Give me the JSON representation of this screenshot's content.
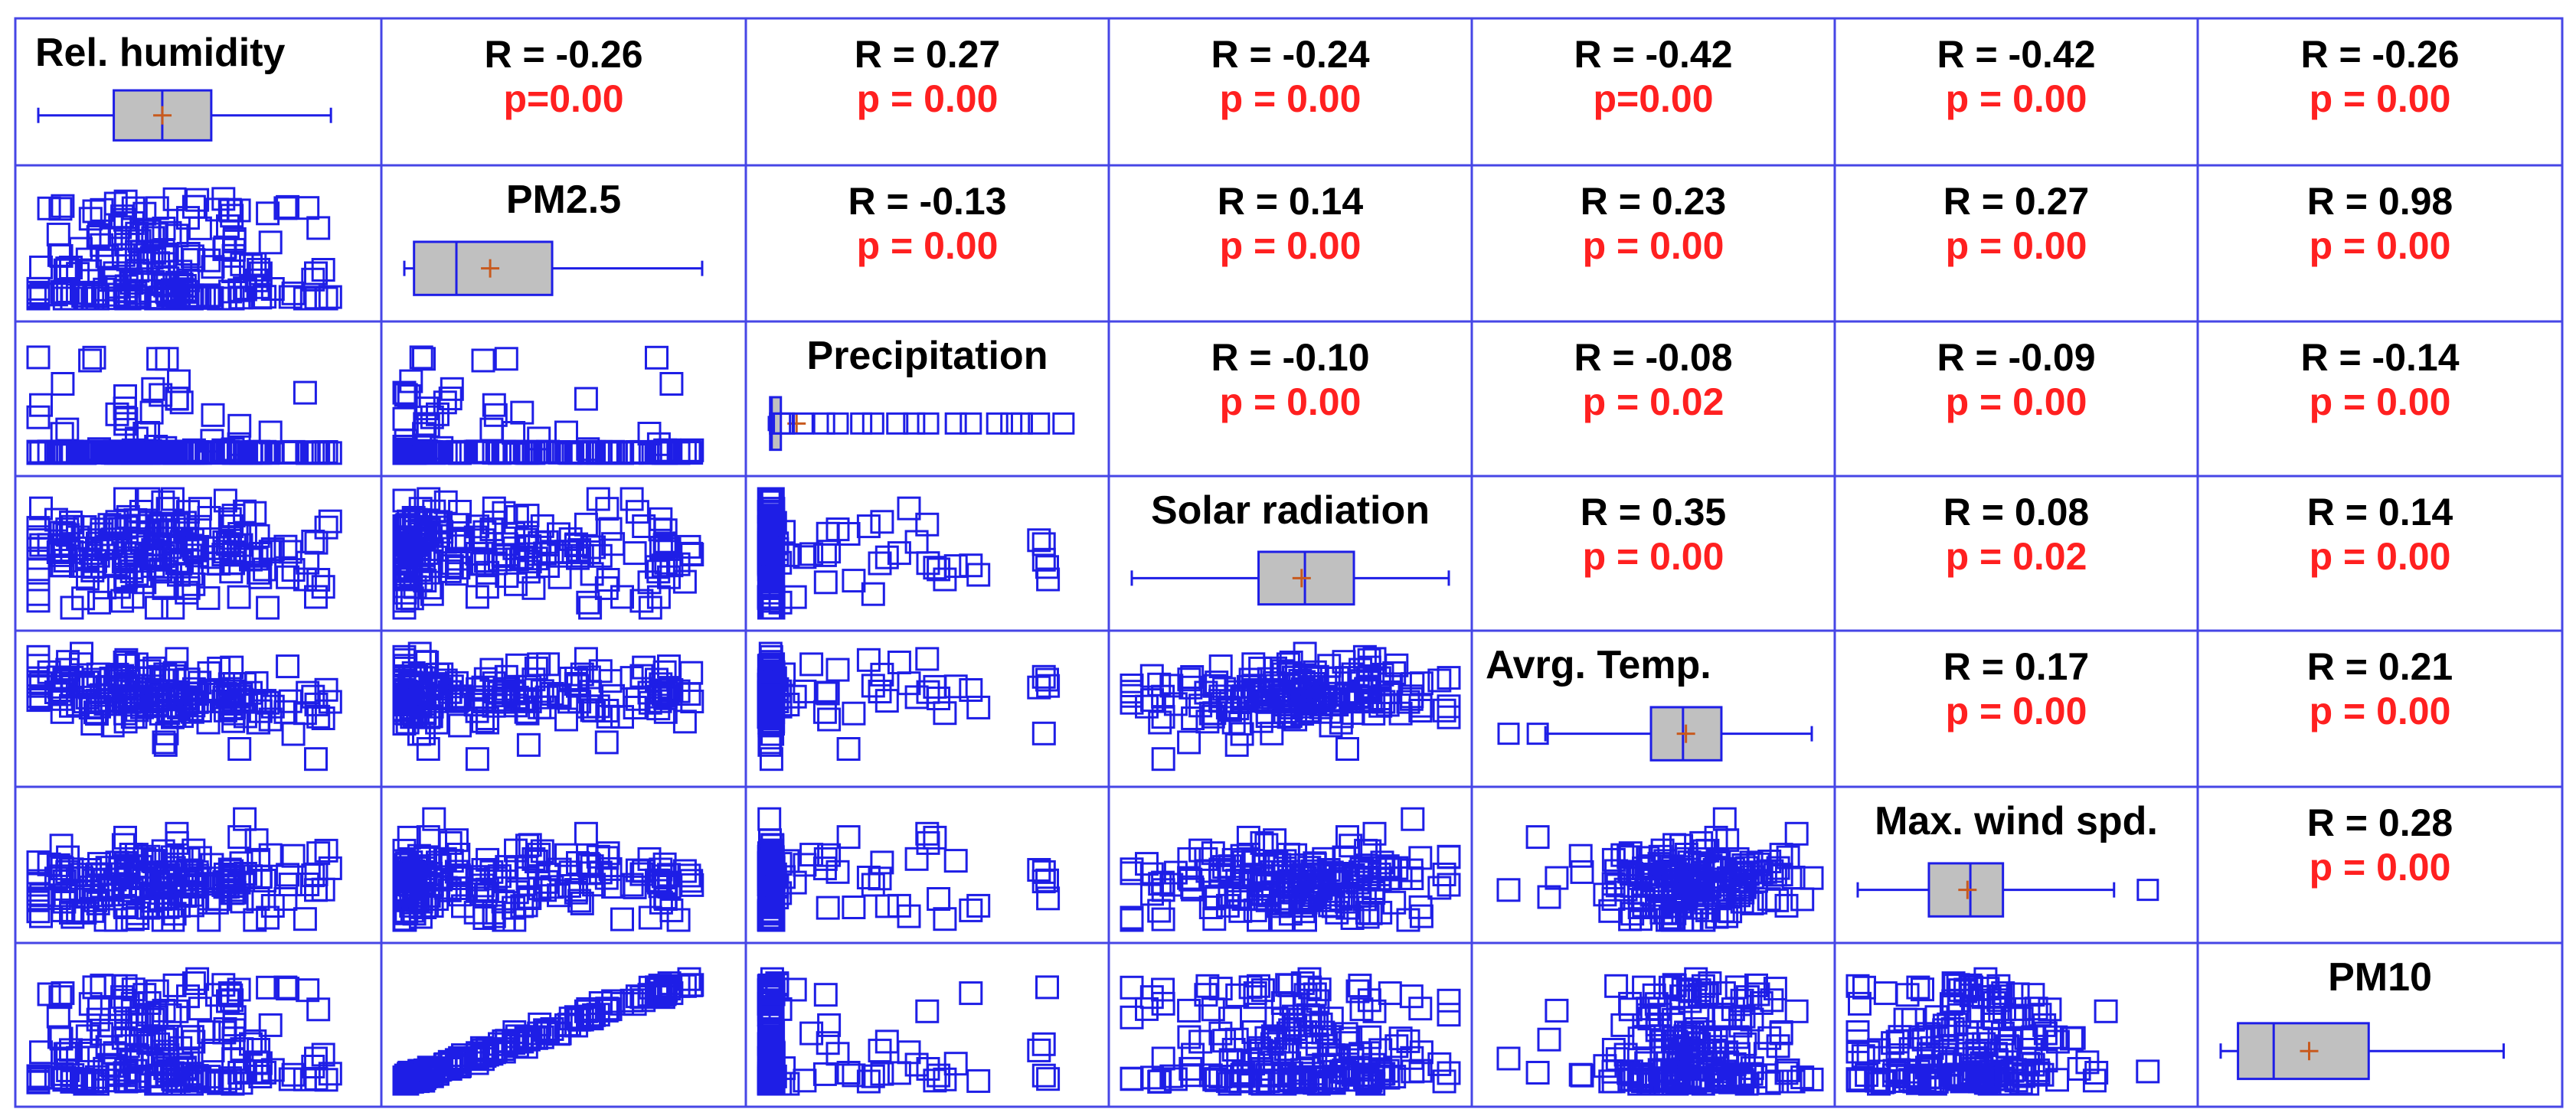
{
  "chart_data": {
    "type": "scatter_matrix",
    "variables": [
      "Rel. humidity",
      "PM2.5",
      "Precipitation",
      "Solar radiation",
      "Avrg. Temp.",
      "Max. wind spd.",
      "PM10"
    ],
    "correlations": [
      {
        "row": 0,
        "col": 1,
        "r": "R = -0.26",
        "p": "p=0.00"
      },
      {
        "row": 0,
        "col": 2,
        "r": "R = 0.27",
        "p": "p = 0.00"
      },
      {
        "row": 0,
        "col": 3,
        "r": "R = -0.24",
        "p": "p = 0.00"
      },
      {
        "row": 0,
        "col": 4,
        "r": "R = -0.42",
        "p": "p=0.00"
      },
      {
        "row": 0,
        "col": 5,
        "r": "R = -0.42",
        "p": "p = 0.00"
      },
      {
        "row": 0,
        "col": 6,
        "r": "R = -0.26",
        "p": "p = 0.00"
      },
      {
        "row": 1,
        "col": 2,
        "r": "R = -0.13",
        "p": "p = 0.00"
      },
      {
        "row": 1,
        "col": 3,
        "r": "R = 0.14",
        "p": "p = 0.00"
      },
      {
        "row": 1,
        "col": 4,
        "r": "R = 0.23",
        "p": "p = 0.00"
      },
      {
        "row": 1,
        "col": 5,
        "r": "R = 0.27",
        "p": "p = 0.00"
      },
      {
        "row": 1,
        "col": 6,
        "r": "R = 0.98",
        "p": "p = 0.00"
      },
      {
        "row": 2,
        "col": 3,
        "r": "R = -0.10",
        "p": "p = 0.00"
      },
      {
        "row": 2,
        "col": 4,
        "r": "R = -0.08",
        "p": "p = 0.02"
      },
      {
        "row": 2,
        "col": 5,
        "r": "R = -0.09",
        "p": "p = 0.00"
      },
      {
        "row": 2,
        "col": 6,
        "r": "R = -0.14",
        "p": "p = 0.00"
      },
      {
        "row": 3,
        "col": 4,
        "r": "R = 0.35",
        "p": "p = 0.00"
      },
      {
        "row": 3,
        "col": 5,
        "r": "R = 0.08",
        "p": "p = 0.02"
      },
      {
        "row": 3,
        "col": 6,
        "r": "R = 0.14",
        "p": "p = 0.00"
      },
      {
        "row": 4,
        "col": 5,
        "r": "R = 0.17",
        "p": "p = 0.00"
      },
      {
        "row": 4,
        "col": 6,
        "r": "R = 0.21",
        "p": "p = 0.00"
      },
      {
        "row": 5,
        "col": 6,
        "r": "R = 0.28",
        "p": "p = 0.00"
      }
    ],
    "grid": true,
    "colors": {
      "marker": "#1e1ee6",
      "grid": "#4646e6",
      "box_fill": "#c0c0c0",
      "mean_marker": "#c85a1e",
      "r_text": "#000000",
      "p_text": "#ff2020"
    }
  }
}
